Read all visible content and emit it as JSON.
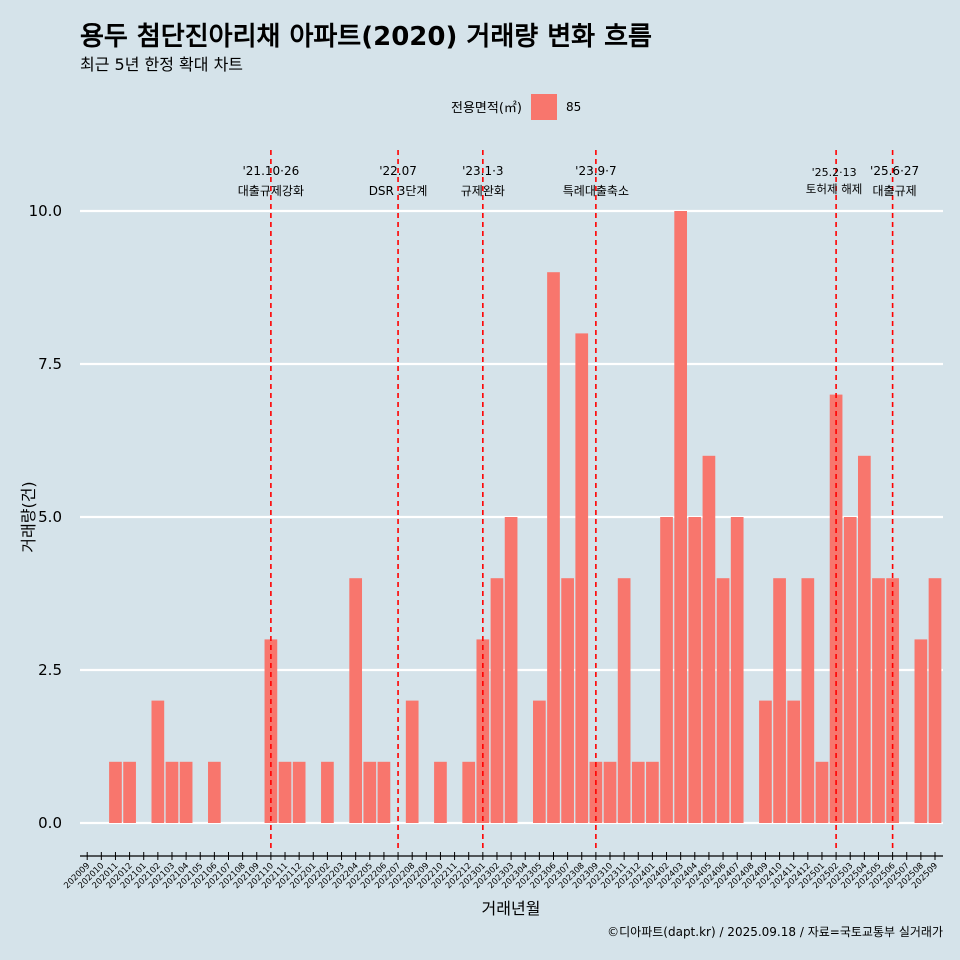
{
  "chart_data": {
    "type": "bar",
    "title": "용두 첨단진아리채 아파트(2020) 거래량 변화 흐름",
    "subtitle": "최근 5년 한정 확대 차트",
    "xlabel": "거래년월",
    "ylabel": "거래량(건)",
    "caption": "©디아파트(dapt.kr) / 2025.09.18 / 자료=국토교통부 실거래가",
    "legend": {
      "title": "전용면적(㎡)",
      "position": "top",
      "items": [
        {
          "label": "85",
          "color": "#f8766d"
        }
      ]
    },
    "ylim": [
      0,
      10
    ],
    "yticks": [
      0,
      2.5,
      5,
      7.5,
      10
    ],
    "ytick_labels": [
      "0.0",
      "2.5",
      "5.0",
      "7.5",
      "10.0"
    ],
    "grid": true,
    "categories": [
      "202009",
      "202010",
      "202011",
      "202012",
      "202101",
      "202102",
      "202103",
      "202104",
      "202105",
      "202106",
      "202107",
      "202108",
      "202109",
      "202110",
      "202111",
      "202112",
      "202201",
      "202202",
      "202203",
      "202204",
      "202205",
      "202206",
      "202207",
      "202208",
      "202209",
      "202210",
      "202211",
      "202212",
      "202301",
      "202302",
      "202303",
      "202304",
      "202305",
      "202306",
      "202307",
      "202308",
      "202309",
      "202310",
      "202311",
      "202312",
      "202401",
      "202402",
      "202403",
      "202404",
      "202405",
      "202406",
      "202407",
      "202408",
      "202409",
      "202410",
      "202411",
      "202412",
      "202501",
      "202502",
      "202503",
      "202504",
      "202505",
      "202506",
      "202507",
      "202508",
      "202509"
    ],
    "series": [
      {
        "name": "85",
        "color": "#f8766d",
        "values": [
          0,
          0,
          1,
          1,
          0,
          2,
          1,
          1,
          0,
          1,
          0,
          0,
          0,
          3,
          1,
          1,
          0,
          1,
          0,
          4,
          1,
          1,
          0,
          2,
          0,
          1,
          0,
          1,
          3,
          4,
          5,
          0,
          2,
          9,
          4,
          8,
          1,
          1,
          4,
          1,
          1,
          5,
          10,
          5,
          6,
          4,
          5,
          0,
          2,
          4,
          2,
          4,
          1,
          7,
          5,
          6,
          4,
          4,
          0,
          3,
          4
        ]
      }
    ],
    "annotations": [
      {
        "category": "202110",
        "date": "'21.10·26",
        "label": "대출규제강화"
      },
      {
        "category": "202207",
        "date": "'22.07",
        "label": "DSR 3단계"
      },
      {
        "category": "202301",
        "date": "'23.1·3",
        "label": "규제완화"
      },
      {
        "category": "202309",
        "date": "'23.9·7",
        "label": "특례대출축소"
      },
      {
        "category": "202502",
        "date": "'25.2·13",
        "label": "토허제 해제"
      },
      {
        "category": "202506",
        "date": "'25.6·27",
        "label": "대출규제"
      }
    ],
    "colors": {
      "background": "#d5e3ea",
      "bar": "#f8766d",
      "grid": "#ffffff",
      "annotation_line": "#ff0000"
    }
  }
}
